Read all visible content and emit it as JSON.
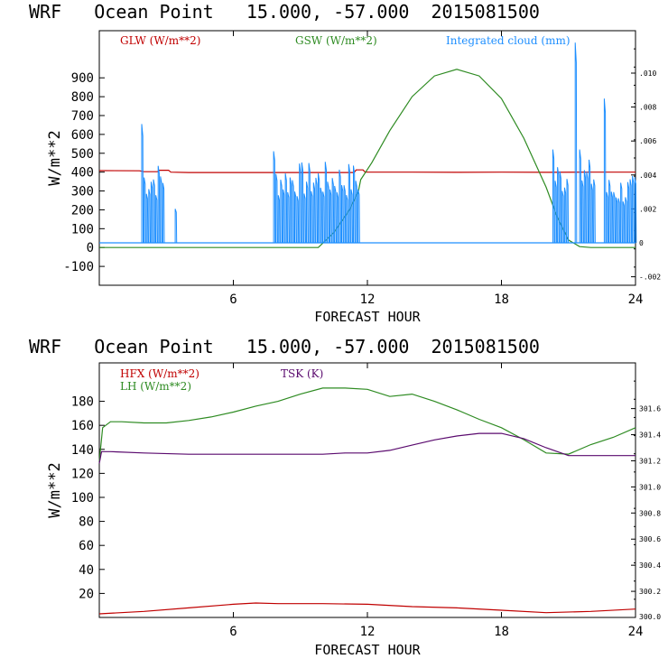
{
  "chart_data": [
    {
      "type": "line",
      "title": "WRF   Ocean Point   15.000, -57.000  2015081500",
      "xlabel": "FORECAST HOUR",
      "ylabel": "W/m**2",
      "xlim": [
        0,
        24
      ],
      "ylim": [
        -200,
        1150
      ],
      "x_ticks": [
        6,
        12,
        18,
        24
      ],
      "y_ticks": [
        -100,
        0,
        100,
        200,
        300,
        400,
        500,
        600,
        700,
        800,
        900
      ],
      "y2lim": [
        -0.0025,
        0.0125
      ],
      "y2_ticks": [
        -0.002,
        0,
        0.002,
        0.004,
        0.006,
        0.008,
        0.01
      ],
      "y2_tick_labels": [
        "-.002",
        "0",
        ".002",
        ".004",
        ".006",
        ".008",
        ".010"
      ],
      "series": [
        {
          "name": "GLW (W/m**2)",
          "color": "#c00000",
          "axis": "left",
          "x": [
            0,
            1.8,
            2,
            2.6,
            2.7,
            3.1,
            3.2,
            4,
            8,
            11.4,
            11.5,
            11.8,
            11.9,
            14,
            16,
            18,
            20,
            22,
            24
          ],
          "y": [
            408,
            407,
            402,
            402,
            410,
            410,
            400,
            398,
            398,
            398,
            412,
            412,
            400,
            400,
            399,
            400,
            399,
            400,
            400
          ]
        },
        {
          "name": "GSW (W/m**2)",
          "color": "#2e8b22",
          "axis": "left",
          "x": [
            0,
            9.8,
            10.5,
            11.2,
            11.6,
            11.7,
            12.2,
            13,
            14,
            15,
            16,
            17,
            18,
            19,
            20,
            20.5,
            21,
            21.5,
            22,
            24
          ],
          "y": [
            0,
            0,
            80,
            200,
            300,
            360,
            450,
            620,
            800,
            910,
            945,
            910,
            790,
            580,
            320,
            160,
            40,
            5,
            0,
            0
          ]
        },
        {
          "name": "Integrated cloud (mm)",
          "color": "#1e8fff",
          "axis": "right",
          "bursts": [
            {
              "start": 1.9,
              "end": 2.9,
              "peak": 0.0048,
              "max": 0.007
            },
            {
              "start": 3.4,
              "end": 3.5,
              "peak": 0.002,
              "max": 0.002
            },
            {
              "start": 7.8,
              "end": 11.6,
              "peak": 0.0048,
              "max": 0.0054
            },
            {
              "start": 20.3,
              "end": 21.0,
              "peak": 0.005,
              "max": 0.0055
            },
            {
              "start": 21.3,
              "end": 21.4,
              "peak": 0.0118,
              "max": 0.0118
            },
            {
              "start": 21.5,
              "end": 22.2,
              "peak": 0.005,
              "max": 0.0055
            },
            {
              "start": 22.6,
              "end": 24.0,
              "peak": 0.004,
              "max": 0.0085
            }
          ]
        }
      ]
    },
    {
      "type": "line",
      "title": "WRF   Ocean Point   15.000, -57.000  2015081500",
      "xlabel": "FORECAST HOUR",
      "ylabel": "W/m**2",
      "xlim": [
        0,
        24
      ],
      "ylim": [
        0,
        212
      ],
      "x_ticks": [
        6,
        12,
        18,
        24
      ],
      "y_ticks": [
        20,
        40,
        60,
        80,
        100,
        120,
        140,
        160,
        180
      ],
      "y2lim": [
        300.0,
        301.95
      ],
      "y2_ticks": [
        300.2,
        300.4,
        300.6,
        300.8,
        301.0,
        301.2,
        301.4,
        301.6
      ],
      "y2_tick_labels": [
        "300.2",
        "300.4",
        "300.6",
        "300.8",
        "301.0",
        "301.2",
        "301.4",
        "301.6"
      ],
      "y2_extra_label": "300.0",
      "series": [
        {
          "name": "HFX (W/m**2)",
          "color": "#c00000",
          "axis": "left",
          "x": [
            0,
            2,
            4,
            6,
            7,
            8,
            10,
            12,
            14,
            16,
            18,
            20,
            22,
            24
          ],
          "y": [
            3,
            5,
            8,
            11,
            12,
            11.5,
            11.5,
            11,
            9,
            8,
            6,
            4,
            5,
            7
          ]
        },
        {
          "name": "LH (W/m**2)",
          "color": "#2e8b22",
          "axis": "left",
          "x": [
            0,
            0.15,
            0.5,
            1,
            2,
            3,
            4,
            5,
            6,
            7,
            8,
            9,
            10,
            11,
            12,
            13,
            14,
            15,
            16,
            17,
            18,
            19,
            20,
            21,
            22,
            23,
            24
          ],
          "y": [
            130,
            158,
            163,
            163,
            162,
            162,
            164,
            167,
            171,
            176,
            180,
            186,
            191,
            191,
            190,
            184,
            186,
            180,
            173,
            165,
            158,
            148,
            137,
            136,
            144,
            150,
            158
          ]
        },
        {
          "name": "TSK (K)",
          "color": "#5a0a6e",
          "axis": "right",
          "x": [
            0,
            0.1,
            0.5,
            2,
            4,
            6,
            8,
            10,
            11,
            12,
            13,
            14,
            15,
            16,
            17,
            18,
            19,
            20,
            21,
            22,
            23,
            24
          ],
          "y": [
            301.18,
            301.27,
            301.27,
            301.26,
            301.25,
            301.25,
            301.25,
            301.25,
            301.26,
            301.26,
            301.28,
            301.32,
            301.36,
            301.39,
            301.41,
            301.41,
            301.37,
            301.3,
            301.24,
            301.24,
            301.24,
            301.24
          ]
        }
      ]
    }
  ]
}
